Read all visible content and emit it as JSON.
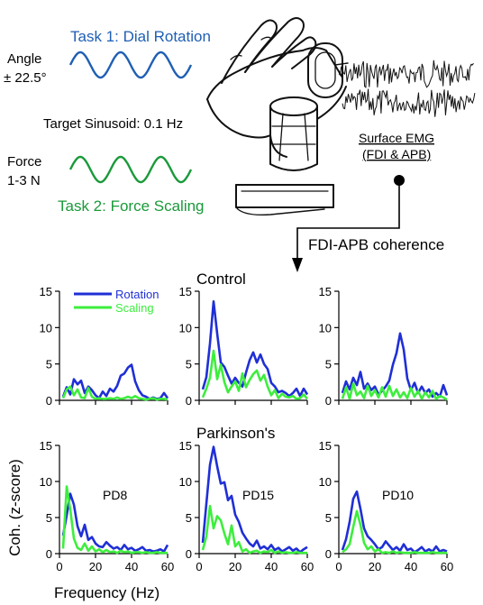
{
  "top": {
    "task1_label": "Task 1: Dial Rotation",
    "task2_label": "Task 2: Force Scaling",
    "angle_label_line1": "Angle",
    "angle_label_line2": "± 22.5°",
    "force_label_line1": "Force",
    "force_label_line2": "1-3 N",
    "target_label": "Target Sinusoid:  0.1 Hz",
    "emg_label_line1": "Surface EMG",
    "emg_label_line2": "(FDI & APB)",
    "coherence_label": "FDI-APB coherence",
    "task1_color": "#1f5fb4",
    "task2_color": "#1a9a3a"
  },
  "colors": {
    "rotation": "#1f2fd6",
    "scaling": "#3dee3d"
  },
  "legend": {
    "rotation": "Rotation",
    "scaling": "Scaling"
  },
  "group_titles": {
    "control": "Control",
    "parkinsons": "Parkinson's"
  },
  "axes": {
    "ylabel": "Coh. (z-score)",
    "xlabel": "Frequency (Hz)"
  },
  "chart_data": [
    {
      "type": "line",
      "group": "Control",
      "panel_label": "",
      "xlim": [
        0,
        60
      ],
      "ylim": [
        0,
        15
      ],
      "xticks": [
        0,
        20,
        40,
        60
      ],
      "yticks": [
        0,
        5,
        10,
        15
      ],
      "series": [
        {
          "name": "Rotation",
          "x": [
            2,
            4,
            6,
            8,
            10,
            12,
            14,
            16,
            18,
            20,
            22,
            24,
            26,
            28,
            30,
            32,
            34,
            36,
            38,
            40,
            42,
            44,
            46,
            48,
            50,
            52,
            54,
            56,
            58,
            60
          ],
          "values": [
            0.5,
            1.8,
            0.8,
            2.9,
            2.2,
            2.7,
            1.0,
            1.9,
            1.4,
            0.7,
            0.3,
            1.2,
            0.6,
            1.6,
            1.2,
            2.0,
            3.4,
            3.7,
            4.5,
            4.9,
            2.6,
            1.4,
            0.7,
            0.5,
            0.2,
            0.4,
            0.2,
            0.3,
            1.0,
            0.3
          ]
        },
        {
          "name": "Scaling",
          "x": [
            2,
            4,
            6,
            8,
            10,
            12,
            14,
            16,
            18,
            20,
            22,
            24,
            26,
            28,
            30,
            32,
            34,
            36,
            38,
            40,
            42,
            44,
            46,
            48,
            50,
            52,
            54,
            56,
            58,
            60
          ],
          "values": [
            0.3,
            1.5,
            1.9,
            0.7,
            1.5,
            0.4,
            0.3,
            1.7,
            0.5,
            0.2,
            0.3,
            0.2,
            0.2,
            0.3,
            0.2,
            0.4,
            0.2,
            0.3,
            0.5,
            0.3,
            0.6,
            0.3,
            0.2,
            0.1,
            0.2,
            0.3,
            0.1,
            0.2,
            0.2,
            0.1
          ]
        }
      ]
    },
    {
      "type": "line",
      "group": "Control",
      "panel_label": "",
      "xlim": [
        0,
        60
      ],
      "ylim": [
        0,
        15
      ],
      "xticks": [
        0,
        20,
        40,
        60
      ],
      "yticks": [
        0,
        5,
        10,
        15
      ],
      "series": [
        {
          "name": "Rotation",
          "x": [
            2,
            4,
            6,
            8,
            10,
            12,
            14,
            16,
            18,
            20,
            22,
            24,
            26,
            28,
            30,
            32,
            34,
            36,
            38,
            40,
            42,
            44,
            46,
            48,
            50,
            52,
            54,
            56,
            58,
            60
          ],
          "values": [
            1.5,
            3.2,
            7.8,
            13.6,
            9.2,
            5.2,
            4.6,
            3.4,
            2.3,
            3.1,
            2.4,
            1.9,
            3.8,
            5.5,
            6.6,
            5.2,
            6.3,
            5.0,
            4.3,
            2.4,
            1.9,
            1.1,
            1.3,
            1.0,
            0.6,
            1.0,
            1.6,
            0.6,
            1.6,
            0.8
          ]
        },
        {
          "name": "Scaling",
          "x": [
            2,
            4,
            6,
            8,
            10,
            12,
            14,
            16,
            18,
            20,
            22,
            24,
            26,
            28,
            30,
            32,
            34,
            36,
            38,
            40,
            42,
            44,
            46,
            48,
            50,
            52,
            54,
            56,
            58,
            60
          ],
          "values": [
            0.4,
            1.6,
            3.1,
            6.8,
            2.9,
            4.9,
            2.5,
            1.1,
            1.9,
            2.6,
            1.3,
            3.7,
            1.8,
            2.8,
            3.6,
            4.1,
            2.7,
            3.5,
            1.9,
            0.7,
            1.4,
            0.3,
            0.9,
            0.5,
            0.4,
            0.6,
            0.2,
            0.3,
            0.8,
            0.2
          ]
        }
      ]
    },
    {
      "type": "line",
      "group": "Control",
      "panel_label": "",
      "xlim": [
        0,
        60
      ],
      "ylim": [
        0,
        15
      ],
      "xticks": [
        0,
        20,
        40,
        60
      ],
      "yticks": [
        0,
        5,
        10,
        15
      ],
      "series": [
        {
          "name": "Rotation",
          "x": [
            2,
            4,
            6,
            8,
            10,
            12,
            14,
            16,
            18,
            20,
            22,
            24,
            26,
            28,
            30,
            32,
            34,
            36,
            38,
            40,
            42,
            44,
            46,
            48,
            50,
            52,
            54,
            56,
            58,
            60
          ],
          "values": [
            1.0,
            2.6,
            1.5,
            3.1,
            2.1,
            3.9,
            1.6,
            2.3,
            1.4,
            1.9,
            0.8,
            1.3,
            1.9,
            2.7,
            4.9,
            6.5,
            9.2,
            7.0,
            3.0,
            1.4,
            2.4,
            1.0,
            1.9,
            1.0,
            1.5,
            0.5,
            1.0,
            0.5,
            2.1,
            0.7
          ]
        },
        {
          "name": "Scaling",
          "x": [
            2,
            4,
            6,
            8,
            10,
            12,
            14,
            16,
            18,
            20,
            22,
            24,
            26,
            28,
            30,
            32,
            34,
            36,
            38,
            40,
            42,
            44,
            46,
            48,
            50,
            52,
            54,
            56,
            58,
            60
          ],
          "values": [
            0.2,
            1.8,
            0.2,
            2.3,
            0.7,
            1.2,
            0.3,
            2.0,
            0.6,
            1.4,
            0.4,
            1.8,
            0.5,
            2.0,
            0.6,
            1.5,
            0.4,
            1.1,
            0.3,
            1.7,
            0.5,
            1.3,
            0.2,
            1.1,
            0.4,
            1.3,
            0.2,
            0.6,
            0.4,
            0.1
          ]
        }
      ]
    },
    {
      "type": "line",
      "group": "Parkinson's",
      "panel_label": "PD8",
      "xlim": [
        0,
        60
      ],
      "ylim": [
        0,
        15
      ],
      "xticks": [
        0,
        20,
        40,
        60
      ],
      "yticks": [
        0,
        5,
        10,
        15
      ],
      "series": [
        {
          "name": "Rotation",
          "x": [
            2,
            4,
            6,
            8,
            10,
            12,
            14,
            16,
            18,
            20,
            22,
            24,
            26,
            28,
            30,
            32,
            34,
            36,
            38,
            40,
            42,
            44,
            46,
            48,
            50,
            52,
            54,
            56,
            58,
            60
          ],
          "values": [
            2.5,
            5.3,
            8.3,
            6.8,
            3.8,
            2.4,
            4.0,
            1.9,
            2.3,
            1.4,
            1.0,
            0.9,
            1.6,
            1.1,
            0.7,
            0.9,
            0.5,
            1.2,
            0.6,
            0.8,
            0.4,
            0.6,
            0.9,
            0.4,
            0.5,
            0.3,
            0.4,
            0.6,
            0.3,
            1.2
          ]
        },
        {
          "name": "Scaling",
          "x": [
            2,
            4,
            6,
            8,
            10,
            12,
            14,
            16,
            18,
            20,
            22,
            24,
            26,
            28,
            30,
            32,
            34,
            36,
            38,
            40,
            42,
            44,
            46,
            48,
            50,
            52,
            54,
            56,
            58,
            60
          ],
          "values": [
            0.7,
            9.3,
            6.1,
            2.1,
            0.8,
            0.5,
            1.4,
            0.4,
            1.0,
            0.3,
            0.6,
            0.2,
            0.5,
            0.2,
            0.3,
            0.1,
            0.4,
            0.2,
            0.3,
            0.1,
            0.2,
            0.2,
            0.1,
            0.2,
            0.1,
            0.1,
            0.2,
            0.1,
            0.1,
            0.1
          ]
        }
      ]
    },
    {
      "type": "line",
      "group": "Parkinson's",
      "panel_label": "PD15",
      "xlim": [
        0,
        60
      ],
      "ylim": [
        0,
        15
      ],
      "xticks": [
        0,
        20,
        40,
        60
      ],
      "yticks": [
        0,
        5,
        10,
        15
      ],
      "series": [
        {
          "name": "Rotation",
          "x": [
            2,
            4,
            6,
            8,
            10,
            12,
            14,
            16,
            18,
            20,
            22,
            24,
            26,
            28,
            30,
            32,
            34,
            36,
            38,
            40,
            42,
            44,
            46,
            48,
            50,
            52,
            54,
            56,
            58,
            60
          ],
          "values": [
            1.5,
            6.9,
            12.3,
            14.8,
            12.1,
            9.7,
            9.9,
            7.4,
            8.0,
            5.4,
            4.4,
            2.9,
            2.1,
            1.4,
            1.0,
            1.8,
            0.7,
            1.0,
            0.6,
            1.2,
            0.5,
            0.8,
            0.3,
            0.6,
            0.9,
            0.4,
            0.7,
            0.2,
            0.6,
            0.9
          ]
        },
        {
          "name": "Scaling",
          "x": [
            2,
            4,
            6,
            8,
            10,
            12,
            14,
            16,
            18,
            20,
            22,
            24,
            26,
            28,
            30,
            32,
            34,
            36,
            38,
            40,
            42,
            44,
            46,
            48,
            50,
            52,
            54,
            56,
            58,
            60
          ],
          "values": [
            0.5,
            2.4,
            6.6,
            3.5,
            5.2,
            4.6,
            2.8,
            1.3,
            3.9,
            1.0,
            1.6,
            0.3,
            0.6,
            0.1,
            0.3,
            0.4,
            0.1,
            0.3,
            0.2,
            0.5,
            0.1,
            0.3,
            0.1,
            0.2,
            0.1,
            0.1,
            0.2,
            0.1,
            0.1,
            0.1
          ]
        }
      ]
    },
    {
      "type": "line",
      "group": "Parkinson's",
      "panel_label": "PD10",
      "xlim": [
        0,
        60
      ],
      "ylim": [
        0,
        15
      ],
      "xticks": [
        0,
        20,
        40,
        60
      ],
      "yticks": [
        0,
        5,
        10,
        15
      ],
      "series": [
        {
          "name": "Rotation",
          "x": [
            2,
            4,
            6,
            8,
            10,
            12,
            14,
            16,
            18,
            20,
            22,
            24,
            26,
            28,
            30,
            32,
            34,
            36,
            38,
            40,
            42,
            44,
            46,
            48,
            50,
            52,
            54,
            56,
            58,
            60
          ],
          "values": [
            0.5,
            2.0,
            4.4,
            7.6,
            8.6,
            6.2,
            3.5,
            2.4,
            1.9,
            1.3,
            0.6,
            0.9,
            1.7,
            1.1,
            0.5,
            0.9,
            0.4,
            1.3,
            0.5,
            0.7,
            0.2,
            0.5,
            0.9,
            0.3,
            0.6,
            0.3,
            1.0,
            0.3,
            0.5,
            0.3
          ]
        },
        {
          "name": "Scaling",
          "x": [
            2,
            4,
            6,
            8,
            10,
            12,
            14,
            16,
            18,
            20,
            22,
            24,
            26,
            28,
            30,
            32,
            34,
            36,
            38,
            40,
            42,
            44,
            46,
            48,
            50,
            52,
            54,
            56,
            58,
            60
          ],
          "values": [
            0.2,
            0.6,
            1.3,
            3.7,
            5.9,
            4.0,
            1.5,
            0.6,
            1.0,
            0.3,
            0.6,
            0.1,
            0.2,
            0.1,
            0.3,
            0.1,
            0.2,
            0.1,
            0.1,
            0.1,
            0.2,
            0.1,
            0.1,
            0.1,
            0.1,
            0.2,
            0.1,
            0.1,
            0.1,
            0.1
          ]
        }
      ]
    }
  ]
}
